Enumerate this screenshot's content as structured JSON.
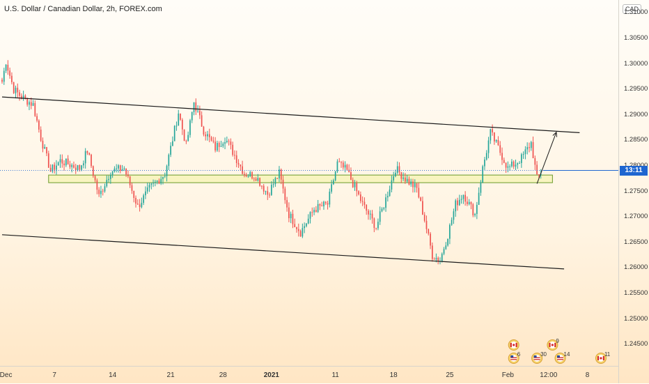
{
  "title": "U.S. Dollar / Canadian Dollar, 2h, FOREX.com",
  "currency": "CAD",
  "current_price_label": "13:11",
  "colors": {
    "up": "#26a69a",
    "down": "#ef5350",
    "trend": "#1a1a1a",
    "zone_fill": "#f2f2a0",
    "zone_stroke": "#6a9a2a",
    "price_line": "#1e66d0"
  },
  "event_icons": [
    {
      "name": "ca-event-icon",
      "flag": "ca",
      "count": "",
      "xi": 264,
      "y": 495
    },
    {
      "name": "ca-event-icon",
      "flag": "ca",
      "count": "9",
      "xi": 284,
      "y": 495
    },
    {
      "name": "us-event-icon",
      "flag": "us",
      "count": "6",
      "xi": 264,
      "y": 514
    },
    {
      "name": "us-event-icon",
      "flag": "us",
      "count": "30",
      "xi": 276,
      "y": 514
    },
    {
      "name": "us-event-icon",
      "flag": "us",
      "count": "14",
      "xi": 288,
      "y": 514
    },
    {
      "name": "ca-event-icon",
      "flag": "ca",
      "count": "11",
      "xi": 309,
      "y": 514
    }
  ],
  "chart_data": {
    "type": "candlestick",
    "title": "U.S. Dollar / Canadian Dollar, 2h, FOREX.com",
    "ylim": [
      1.2408,
      1.3125
    ],
    "y_ticks": [
      1.245,
      1.25,
      1.255,
      1.26,
      1.265,
      1.27,
      1.275,
      1.28,
      1.285,
      1.29,
      1.295,
      1.3,
      1.305,
      1.31
    ],
    "x_ticks": [
      {
        "label": "Dec",
        "index": 2,
        "bold": false
      },
      {
        "label": "7",
        "index": 27,
        "bold": false
      },
      {
        "label": "14",
        "index": 57,
        "bold": false
      },
      {
        "label": "21",
        "index": 87,
        "bold": false
      },
      {
        "label": "28",
        "index": 114,
        "bold": false
      },
      {
        "label": "2021",
        "index": 139,
        "bold": true
      },
      {
        "label": "11",
        "index": 172,
        "bold": false
      },
      {
        "label": "18",
        "index": 202,
        "bold": false
      },
      {
        "label": "25",
        "index": 231,
        "bold": false
      },
      {
        "label": "Feb",
        "index": 261,
        "bold": false
      },
      {
        "label": "12:00",
        "index": 282,
        "bold": false
      },
      {
        "label": "8",
        "index": 302,
        "bold": false
      }
    ],
    "x_range": [
      0,
      318
    ],
    "anchors": [
      [
        0,
        1.2965
      ],
      [
        2,
        1.3005
      ],
      [
        6,
        1.295
      ],
      [
        10,
        1.2935
      ],
      [
        16,
        1.292
      ],
      [
        20,
        1.2855
      ],
      [
        25,
        1.279
      ],
      [
        30,
        1.281
      ],
      [
        40,
        1.2795
      ],
      [
        44,
        1.283
      ],
      [
        50,
        1.274
      ],
      [
        56,
        1.279
      ],
      [
        63,
        1.2795
      ],
      [
        70,
        1.272
      ],
      [
        76,
        1.2755
      ],
      [
        84,
        1.2785
      ],
      [
        87,
        1.2835
      ],
      [
        91,
        1.2905
      ],
      [
        95,
        1.284
      ],
      [
        99,
        1.2925
      ],
      [
        104,
        1.287
      ],
      [
        110,
        1.2835
      ],
      [
        115,
        1.2855
      ],
      [
        118,
        1.2835
      ],
      [
        125,
        1.2785
      ],
      [
        131,
        1.278
      ],
      [
        137,
        1.2745
      ],
      [
        143,
        1.2785
      ],
      [
        148,
        1.2705
      ],
      [
        154,
        1.267
      ],
      [
        161,
        1.2715
      ],
      [
        168,
        1.2725
      ],
      [
        173,
        1.2805
      ],
      [
        178,
        1.279
      ],
      [
        186,
        1.2725
      ],
      [
        193,
        1.268
      ],
      [
        198,
        1.2735
      ],
      [
        203,
        1.2795
      ],
      [
        208,
        1.2775
      ],
      [
        214,
        1.2755
      ],
      [
        218,
        1.2695
      ],
      [
        222,
        1.2625
      ],
      [
        226,
        1.2615
      ],
      [
        230,
        1.2665
      ],
      [
        234,
        1.2725
      ],
      [
        238,
        1.2745
      ],
      [
        244,
        1.2705
      ],
      [
        248,
        1.2795
      ],
      [
        252,
        1.2865
      ],
      [
        256,
        1.2835
      ],
      [
        261,
        1.2795
      ],
      [
        265,
        1.2805
      ],
      [
        268,
        1.2815
      ],
      [
        273,
        1.2845
      ],
      [
        276,
        1.2775
      ],
      [
        278,
        1.2785
      ]
    ],
    "trend_lines": [
      {
        "name": "upper-channel-line",
        "points": [
          [
            0,
            1.2935
          ],
          [
            298,
            1.2865
          ]
        ]
      },
      {
        "name": "lower-channel-line",
        "points": [
          [
            0,
            1.2665
          ],
          [
            290,
            1.2598
          ]
        ]
      }
    ],
    "zone": {
      "x": [
        24,
        284
      ],
      "y": [
        1.2767,
        1.2782
      ]
    },
    "arrow": {
      "from": [
        276,
        1.2765
      ],
      "to": [
        286,
        1.2866
      ]
    },
    "current_price": 1.2791,
    "last_index": 278
  }
}
